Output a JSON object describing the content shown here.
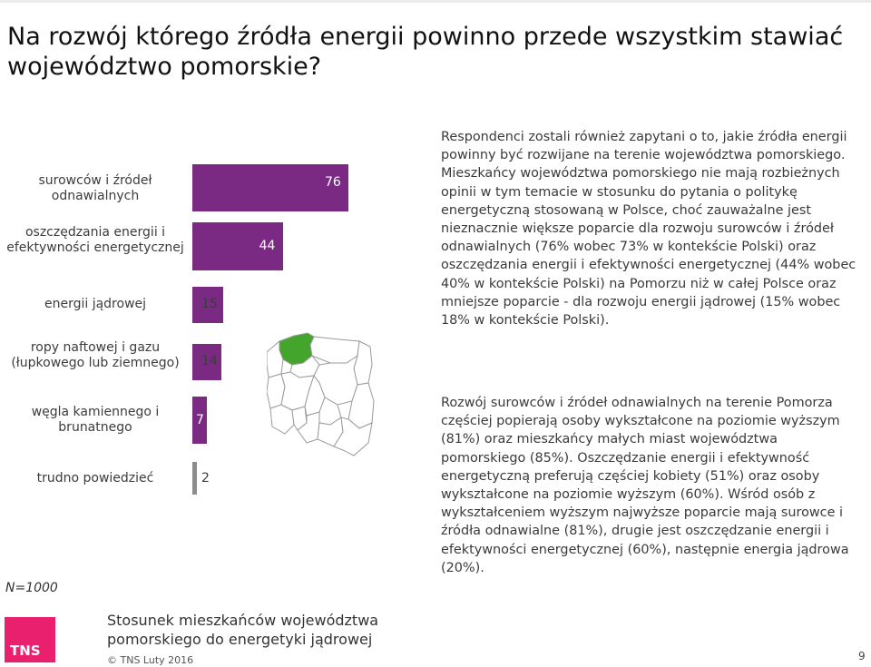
{
  "header": {
    "title": "Na rozwój którego źródła energii powinno przede wszystkim stawiać województwo pomorskie?"
  },
  "chart_data": {
    "type": "bar",
    "orientation": "horizontal",
    "categories": [
      "surowców i źródeł odnawialnych",
      "oszczędzania energii i efektywności energetycznej",
      "energii jądrowej",
      "ropy naftowej i gazu (łupkowego lub ziemnego)",
      "węgla kamiennego i brunatnego",
      "trudno powiedzieć"
    ],
    "values": [
      76,
      44,
      15,
      14,
      7,
      2
    ],
    "colors": [
      "#7a2a82",
      "#7a2a82",
      "#7a2a82",
      "#7a2a82",
      "#7a2a82",
      "#8c8c8c"
    ],
    "xlim": [
      0,
      76
    ]
  },
  "sample": "N=1000",
  "text": {
    "paragraph1": "Respondenci zostali również zapytani o to, jakie źródła energii powinny być rozwijane na terenie województwa pomorskiego. Mieszkańcy województwa pomorskiego nie mają rozbieżnych opinii w tym temacie w stosunku do pytania o politykę energetyczną stosowaną w Polsce, choć zauważalne jest nieznacznie większe poparcie dla rozwoju surowców i źródeł odnawialnych (76% wobec 73% w kontekście Polski) oraz oszczędzania energii i efektywności energetycznej (44% wobec 40% w kontekście Polski) na Pomorzu niż w całej Polsce oraz mniejsze poparcie  - dla rozwoju energii jądrowej (15% wobec 18% w kontekście Polski).",
    "paragraph2": "Rozwój surowców i źródeł odnawialnych na terenie Pomorza częściej popierają osoby wykształcone na poziomie wyższym (81%) oraz mieszkańcy małych miast województwa pomorskiego (85%). Oszczędzanie energii i efektywność energetyczną preferują częściej kobiety (51%) oraz osoby wykształcone na poziomie wyższym (60%). Wśród osób z wykształceniem wyższym najwyższe poparcie mają surowce i źródła odnawialne (81%), drugie jest oszczędzanie energii i efektywności energetycznej (60%), następnie energia jądrowa (20%)."
  },
  "footer": {
    "title_line1": "Stosunek mieszkańców województwa",
    "title_line2": "pomorskiego do energetyki jądrowej",
    "copyright": "© TNS Luty 2016",
    "logo_text": "TNS",
    "page_number": "9"
  },
  "map": {
    "highlight_color": "#44a52c",
    "region_color": "#ffffff",
    "border_color": "#9a9a9a"
  }
}
